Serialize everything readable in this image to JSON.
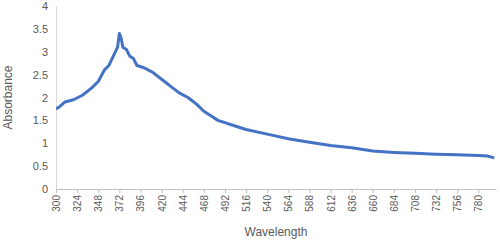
{
  "chart_data": {
    "type": "line",
    "x_label": "Wavelength",
    "y_label": "Absorbance",
    "x": [
      300,
      304,
      310,
      320,
      330,
      340,
      348,
      355,
      360,
      365,
      370,
      372,
      374,
      376,
      380,
      384,
      388,
      392,
      400,
      410,
      420,
      430,
      440,
      450,
      460,
      468,
      476,
      484,
      492,
      500,
      516,
      540,
      564,
      588,
      612,
      636,
      660,
      684,
      708,
      732,
      756,
      780,
      790,
      798
    ],
    "values": [
      1.75,
      1.8,
      1.9,
      1.95,
      2.05,
      2.2,
      2.35,
      2.6,
      2.7,
      2.9,
      3.1,
      3.4,
      3.3,
      3.1,
      3.05,
      2.9,
      2.85,
      2.7,
      2.65,
      2.55,
      2.4,
      2.25,
      2.1,
      2.0,
      1.85,
      1.7,
      1.6,
      1.5,
      1.45,
      1.4,
      1.3,
      1.2,
      1.1,
      1.02,
      0.95,
      0.9,
      0.83,
      0.8,
      0.78,
      0.76,
      0.75,
      0.73,
      0.72,
      0.68
    ],
    "color": "#4472c4",
    "xlim": [
      300,
      800
    ],
    "xticks": [
      300,
      324,
      348,
      372,
      396,
      420,
      444,
      468,
      492,
      516,
      540,
      564,
      588,
      612,
      636,
      660,
      684,
      708,
      732,
      756,
      780
    ],
    "ylim": [
      0,
      4
    ],
    "yticks": [
      0,
      0.5,
      1,
      1.5,
      2,
      2.5,
      3,
      3.5,
      4
    ],
    "grid": false
  }
}
